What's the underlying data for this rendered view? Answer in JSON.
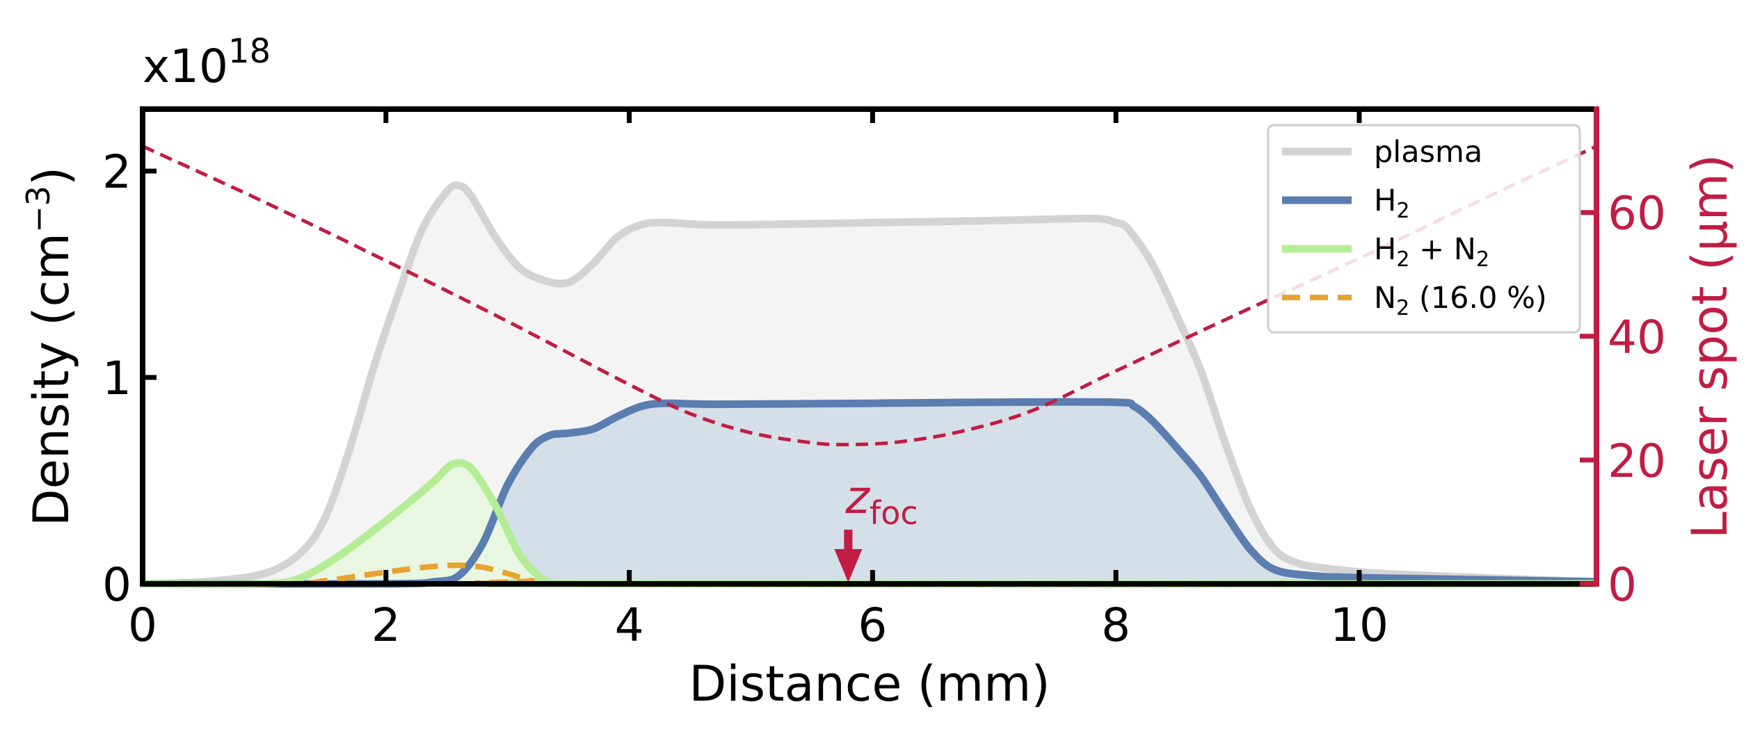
{
  "chart_data": {
    "type": "line",
    "xlabel": "Distance (mm)",
    "ylabel": "Density (cm",
    "ylabel_sup": "−3",
    "ylabel_end": ")",
    "y2label": "Laser spot (μm)",
    "offset_text": {
      "prefix": "x10",
      "exponent": "18"
    },
    "xlim": [
      0,
      11.95
    ],
    "ylim": [
      0,
      2.3
    ],
    "y2lim": [
      0,
      76.7
    ],
    "x_ticks": [
      0,
      2,
      4,
      6,
      8,
      10
    ],
    "x_tick_labels": [
      "0",
      "2",
      "4",
      "6",
      "8",
      "10"
    ],
    "y_ticks": [
      0,
      1,
      2
    ],
    "y_tick_labels": [
      "0",
      "1",
      "2"
    ],
    "y2_ticks": [
      0,
      20,
      40,
      60
    ],
    "y2_tick_labels": [
      "0",
      "20",
      "40",
      "60"
    ],
    "grid": false,
    "legend_position": "upper right",
    "legend": [
      {
        "label": "plasma",
        "sub": "",
        "rest": "",
        "sub2": "",
        "rest2": ""
      },
      {
        "label": "H",
        "sub": "2",
        "rest": "",
        "sub2": "",
        "rest2": ""
      },
      {
        "label": "H",
        "sub": "2",
        "rest": " + N",
        "sub2": "2",
        "rest2": ""
      },
      {
        "label": "N",
        "sub": "2",
        "rest": " (16.0 %)",
        "sub2": "",
        "rest2": ""
      }
    ],
    "annotation": {
      "text": "z",
      "sub": "foc",
      "x": 5.8
    },
    "colors": {
      "plasma": "#d3d3d3",
      "plasma_fill": "#f4f4f4",
      "h2": "#5b7db0",
      "h2_fill": "#d5dfe8",
      "h2n2": "#b4ed95",
      "h2n2_fill": "#e9f7e2",
      "n2": "#e8a22e",
      "laser": "#c11c44"
    },
    "series": [
      {
        "name": "plasma",
        "x": [
          0,
          0.5,
          1.0,
          1.3,
          1.5,
          1.7,
          1.9,
          2.1,
          2.3,
          2.5,
          2.6,
          2.7,
          2.9,
          3.1,
          3.3,
          3.5,
          3.7,
          3.9,
          4.1,
          4.3,
          4.6,
          5.0,
          6.0,
          7.0,
          7.8,
          8.0,
          8.1,
          8.3,
          8.5,
          8.7,
          8.9,
          9.1,
          9.3,
          9.5,
          9.8,
          10.2,
          11.0,
          11.95
        ],
        "y": [
          0.0,
          0.01,
          0.05,
          0.15,
          0.32,
          0.65,
          1.05,
          1.4,
          1.72,
          1.9,
          1.93,
          1.88,
          1.68,
          1.53,
          1.47,
          1.46,
          1.55,
          1.68,
          1.74,
          1.75,
          1.74,
          1.74,
          1.75,
          1.76,
          1.77,
          1.75,
          1.72,
          1.55,
          1.3,
          1.03,
          0.68,
          0.37,
          0.17,
          0.1,
          0.07,
          0.05,
          0.03,
          0.01
        ]
      },
      {
        "name": "H2",
        "x": [
          0,
          2.0,
          2.4,
          2.6,
          2.8,
          3.0,
          3.2,
          3.35,
          3.5,
          3.7,
          3.9,
          4.1,
          4.3,
          4.7,
          6.0,
          7.0,
          8.0,
          8.15,
          8.3,
          8.5,
          8.7,
          8.9,
          9.1,
          9.3,
          9.6,
          10.0,
          11.0,
          11.95
        ],
        "y": [
          0.0,
          0.0,
          0.01,
          0.04,
          0.2,
          0.48,
          0.66,
          0.72,
          0.73,
          0.75,
          0.81,
          0.86,
          0.875,
          0.87,
          0.875,
          0.88,
          0.88,
          0.86,
          0.79,
          0.66,
          0.52,
          0.34,
          0.17,
          0.07,
          0.04,
          0.03,
          0.02,
          0.01
        ]
      },
      {
        "name": "H2 + N2",
        "x": [
          0,
          1.0,
          1.3,
          1.6,
          1.9,
          2.2,
          2.4,
          2.55,
          2.7,
          2.9,
          3.1,
          3.3,
          3.5,
          11.95
        ],
        "y": [
          0.0,
          0.0,
          0.03,
          0.13,
          0.26,
          0.4,
          0.5,
          0.58,
          0.56,
          0.38,
          0.14,
          0.02,
          0.0,
          0.0
        ]
      },
      {
        "name": "N2 (16.0 %)",
        "x": [
          0,
          1.2,
          1.5,
          1.8,
          2.1,
          2.4,
          2.6,
          2.8,
          3.0,
          3.2,
          3.4,
          11.95
        ],
        "y": [
          0.0,
          0.0,
          0.015,
          0.04,
          0.065,
          0.085,
          0.09,
          0.08,
          0.05,
          0.015,
          0.0,
          0.0
        ]
      },
      {
        "name": "Laser spot",
        "axis": "y2",
        "x": [
          0,
          1,
          2,
          3,
          4,
          4.5,
          5,
          5.5,
          5.8,
          6.2,
          6.7,
          7.3,
          8,
          9,
          10,
          11,
          11.95
        ],
        "y": [
          70.7,
          61.7,
          52.2,
          42.4,
          32.2,
          27.5,
          24.4,
          22.8,
          22.5,
          22.9,
          24.5,
          27.9,
          34.4,
          43.6,
          52.6,
          62.0,
          70.7
        ]
      }
    ]
  }
}
